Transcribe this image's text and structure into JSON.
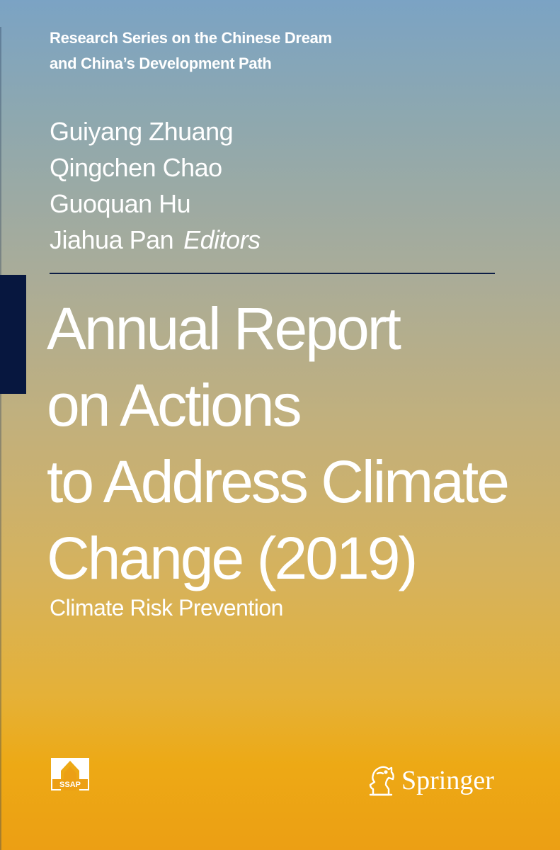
{
  "series": {
    "line1": "Research Series on the Chinese Dream",
    "line2": "and China’s Development Path"
  },
  "editors": {
    "names": [
      "Guiyang Zhuang",
      "Qingchen Chao",
      "Guoquan Hu",
      "Jiahua Pan"
    ],
    "role": "Editors"
  },
  "title": {
    "lines": [
      "Annual Report",
      "on Actions",
      "to Address Climate",
      "Change (2019)"
    ]
  },
  "subtitle": "Climate Risk Prevention",
  "logos": {
    "ssap": "SSAP",
    "publisher": "Springer"
  },
  "colors": {
    "gradient_top": "#7ba3c4",
    "gradient_bottom": "#ec9f14",
    "rule": "#0c1d45",
    "tab": "#07173f",
    "text": "#ffffff"
  }
}
